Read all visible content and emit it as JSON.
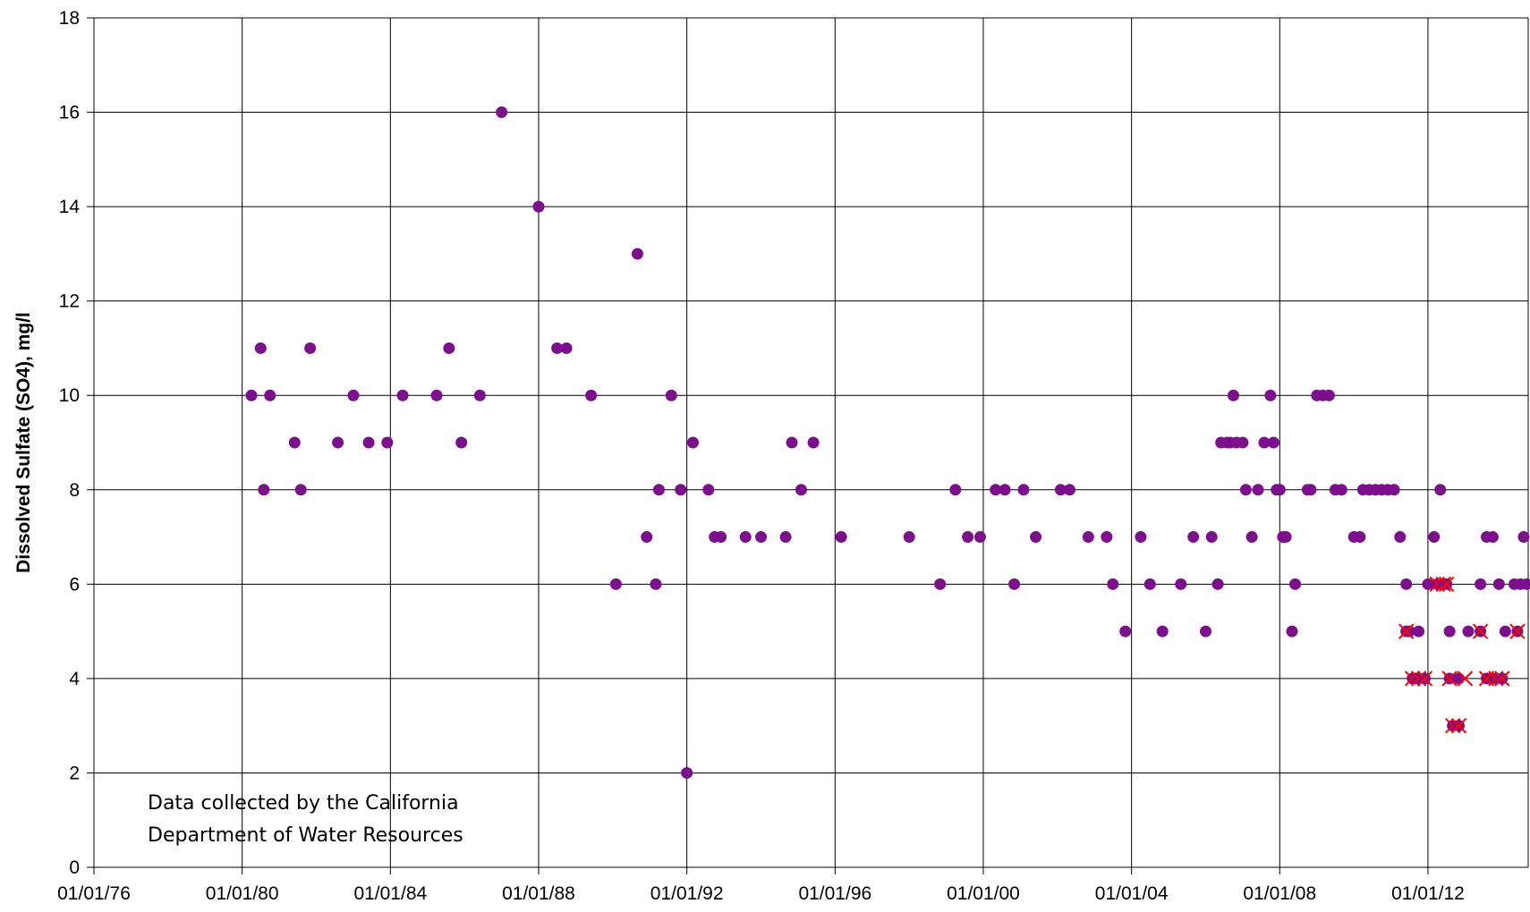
{
  "chart_data": {
    "type": "scatter",
    "title": "",
    "xlabel": "",
    "ylabel": "Dissolved Sulfate (SO4), mg/l",
    "ylim": [
      0,
      18
    ],
    "xlim": [
      "1976-01-01",
      "2014-09-15"
    ],
    "y_ticks": [
      0,
      2,
      4,
      6,
      8,
      10,
      12,
      14,
      16,
      18
    ],
    "x_tick_dates": [
      "1976-01-01",
      "1980-01-01",
      "1984-01-01",
      "1988-01-01",
      "1992-01-01",
      "1996-01-01",
      "2000-01-01",
      "2004-01-01",
      "2008-01-01",
      "2012-01-01"
    ],
    "x_tick_labels": [
      "01/01/76",
      "01/01/80",
      "01/01/84",
      "01/01/88",
      "01/01/92",
      "01/01/96",
      "01/01/00",
      "01/01/04",
      "01/01/08",
      "01/01/12"
    ],
    "grid": true,
    "annotation": [
      "Data collected by the California",
      "Department of Water Resources"
    ],
    "colors": {
      "point": "#7b0f8c",
      "flag": "#ff0000",
      "grid": "#000000"
    },
    "series": [
      {
        "marker": "circle",
        "points": [
          {
            "x": "1980-04-01",
            "y": 10
          },
          {
            "x": "1980-07-01",
            "y": 11
          },
          {
            "x": "1980-08-01",
            "y": 8
          },
          {
            "x": "1980-10-01",
            "y": 10
          },
          {
            "x": "1981-06-01",
            "y": 9
          },
          {
            "x": "1981-08-01",
            "y": 8
          },
          {
            "x": "1981-11-01",
            "y": 11
          },
          {
            "x": "1982-08-01",
            "y": 9
          },
          {
            "x": "1983-01-01",
            "y": 10
          },
          {
            "x": "1983-06-01",
            "y": 9
          },
          {
            "x": "1983-12-01",
            "y": 9
          },
          {
            "x": "1984-05-01",
            "y": 10
          },
          {
            "x": "1985-04-01",
            "y": 10
          },
          {
            "x": "1985-08-01",
            "y": 11
          },
          {
            "x": "1985-12-01",
            "y": 9
          },
          {
            "x": "1986-06-01",
            "y": 10
          },
          {
            "x": "1987-01-01",
            "y": 16
          },
          {
            "x": "1988-01-01",
            "y": 14
          },
          {
            "x": "1988-07-01",
            "y": 11
          },
          {
            "x": "1988-10-01",
            "y": 11
          },
          {
            "x": "1989-06-01",
            "y": 10
          },
          {
            "x": "1990-02-01",
            "y": 6
          },
          {
            "x": "1990-09-01",
            "y": 13
          },
          {
            "x": "1990-12-01",
            "y": 7
          },
          {
            "x": "1991-03-01",
            "y": 6
          },
          {
            "x": "1991-04-01",
            "y": 8
          },
          {
            "x": "1991-08-01",
            "y": 10
          },
          {
            "x": "1991-11-01",
            "y": 8
          },
          {
            "x": "1992-01-01",
            "y": 2
          },
          {
            "x": "1992-03-01",
            "y": 9
          },
          {
            "x": "1992-08-01",
            "y": 8
          },
          {
            "x": "1992-10-01",
            "y": 7
          },
          {
            "x": "1992-12-01",
            "y": 7
          },
          {
            "x": "1993-08-01",
            "y": 7
          },
          {
            "x": "1994-01-01",
            "y": 7
          },
          {
            "x": "1994-09-01",
            "y": 7
          },
          {
            "x": "1994-11-01",
            "y": 9
          },
          {
            "x": "1995-02-01",
            "y": 8
          },
          {
            "x": "1995-06-01",
            "y": 9
          },
          {
            "x": "1996-03-01",
            "y": 7
          },
          {
            "x": "1998-01-01",
            "y": 7
          },
          {
            "x": "1998-11-01",
            "y": 6
          },
          {
            "x": "1999-04-01",
            "y": 8
          },
          {
            "x": "1999-08-01",
            "y": 7
          },
          {
            "x": "1999-12-01",
            "y": 7
          },
          {
            "x": "2000-05-01",
            "y": 8
          },
          {
            "x": "2000-08-01",
            "y": 8
          },
          {
            "x": "2000-11-01",
            "y": 6
          },
          {
            "x": "2001-02-01",
            "y": 8
          },
          {
            "x": "2001-06-01",
            "y": 7
          },
          {
            "x": "2002-02-01",
            "y": 8
          },
          {
            "x": "2002-05-01",
            "y": 8
          },
          {
            "x": "2002-11-01",
            "y": 7
          },
          {
            "x": "2003-05-01",
            "y": 7
          },
          {
            "x": "2003-07-01",
            "y": 6
          },
          {
            "x": "2003-11-01",
            "y": 5
          },
          {
            "x": "2004-04-01",
            "y": 7
          },
          {
            "x": "2004-07-01",
            "y": 6
          },
          {
            "x": "2004-11-01",
            "y": 5
          },
          {
            "x": "2005-05-01",
            "y": 6
          },
          {
            "x": "2005-09-01",
            "y": 7
          },
          {
            "x": "2006-01-01",
            "y": 5
          },
          {
            "x": "2006-03-01",
            "y": 7
          },
          {
            "x": "2006-05-01",
            "y": 6
          },
          {
            "x": "2006-06-01",
            "y": 9
          },
          {
            "x": "2006-08-01",
            "y": 9
          },
          {
            "x": "2006-09-01",
            "y": 9
          },
          {
            "x": "2006-10-01",
            "y": 10
          },
          {
            "x": "2006-11-01",
            "y": 9
          },
          {
            "x": "2007-01-01",
            "y": 9
          },
          {
            "x": "2007-02-01",
            "y": 8
          },
          {
            "x": "2007-04-01",
            "y": 7
          },
          {
            "x": "2007-06-01",
            "y": 8
          },
          {
            "x": "2007-08-01",
            "y": 9
          },
          {
            "x": "2007-10-01",
            "y": 10
          },
          {
            "x": "2007-11-01",
            "y": 9
          },
          {
            "x": "2007-12-01",
            "y": 8
          },
          {
            "x": "2008-01-01",
            "y": 8
          },
          {
            "x": "2008-02-01",
            "y": 7
          },
          {
            "x": "2008-03-01",
            "y": 7
          },
          {
            "x": "2008-05-01",
            "y": 5
          },
          {
            "x": "2008-06-01",
            "y": 6
          },
          {
            "x": "2008-10-01",
            "y": 8
          },
          {
            "x": "2008-11-01",
            "y": 8
          },
          {
            "x": "2009-01-01",
            "y": 10
          },
          {
            "x": "2009-03-01",
            "y": 10
          },
          {
            "x": "2009-05-01",
            "y": 10
          },
          {
            "x": "2009-07-01",
            "y": 8
          },
          {
            "x": "2009-09-01",
            "y": 8
          },
          {
            "x": "2010-01-01",
            "y": 7
          },
          {
            "x": "2010-03-01",
            "y": 7
          },
          {
            "x": "2010-04-01",
            "y": 8
          },
          {
            "x": "2010-06-01",
            "y": 8
          },
          {
            "x": "2010-08-01",
            "y": 8
          },
          {
            "x": "2010-10-01",
            "y": 8
          },
          {
            "x": "2010-12-01",
            "y": 8
          },
          {
            "x": "2011-02-01",
            "y": 8
          },
          {
            "x": "2011-04-01",
            "y": 7
          },
          {
            "x": "2011-06-01",
            "y": 6
          },
          {
            "x": "2011-07-01",
            "y": 5
          },
          {
            "x": "2011-09-01",
            "y": 4
          },
          {
            "x": "2011-10-01",
            "y": 5
          },
          {
            "x": "2012-01-01",
            "y": 6
          },
          {
            "x": "2012-03-01",
            "y": 7
          },
          {
            "x": "2012-05-01",
            "y": 8
          },
          {
            "x": "2012-08-01",
            "y": 5
          },
          {
            "x": "2012-11-01",
            "y": 4
          },
          {
            "x": "2013-02-01",
            "y": 5
          },
          {
            "x": "2013-06-01",
            "y": 6
          },
          {
            "x": "2013-08-01",
            "y": 7
          },
          {
            "x": "2013-10-01",
            "y": 7
          },
          {
            "x": "2013-12-01",
            "y": 6
          },
          {
            "x": "2014-02-01",
            "y": 5
          },
          {
            "x": "2014-05-01",
            "y": 6
          },
          {
            "x": "2014-07-01",
            "y": 6
          },
          {
            "x": "2014-08-01",
            "y": 7
          },
          {
            "x": "2014-09-01",
            "y": 6
          }
        ]
      },
      {
        "marker": "circle-x",
        "points": [
          {
            "x": "2011-06-01",
            "y": 5
          },
          {
            "x": "2011-08-01",
            "y": 4
          },
          {
            "x": "2011-10-01",
            "y": 4
          },
          {
            "x": "2011-12-01",
            "y": 4
          },
          {
            "x": "2012-04-01",
            "y": 6
          },
          {
            "x": "2012-06-01",
            "y": 6
          },
          {
            "x": "2012-07-01",
            "y": 6
          },
          {
            "x": "2012-08-01",
            "y": 4
          },
          {
            "x": "2012-09-01",
            "y": 3
          },
          {
            "x": "2012-11-01",
            "y": 3
          },
          {
            "x": "2013-06-01",
            "y": 5
          },
          {
            "x": "2013-08-01",
            "y": 4
          },
          {
            "x": "2013-11-01",
            "y": 4
          },
          {
            "x": "2014-01-01",
            "y": 4
          },
          {
            "x": "2014-06-01",
            "y": 5
          }
        ]
      },
      {
        "marker": "x",
        "points": [
          {
            "x": "2013-01-01",
            "y": 4
          }
        ]
      }
    ]
  }
}
